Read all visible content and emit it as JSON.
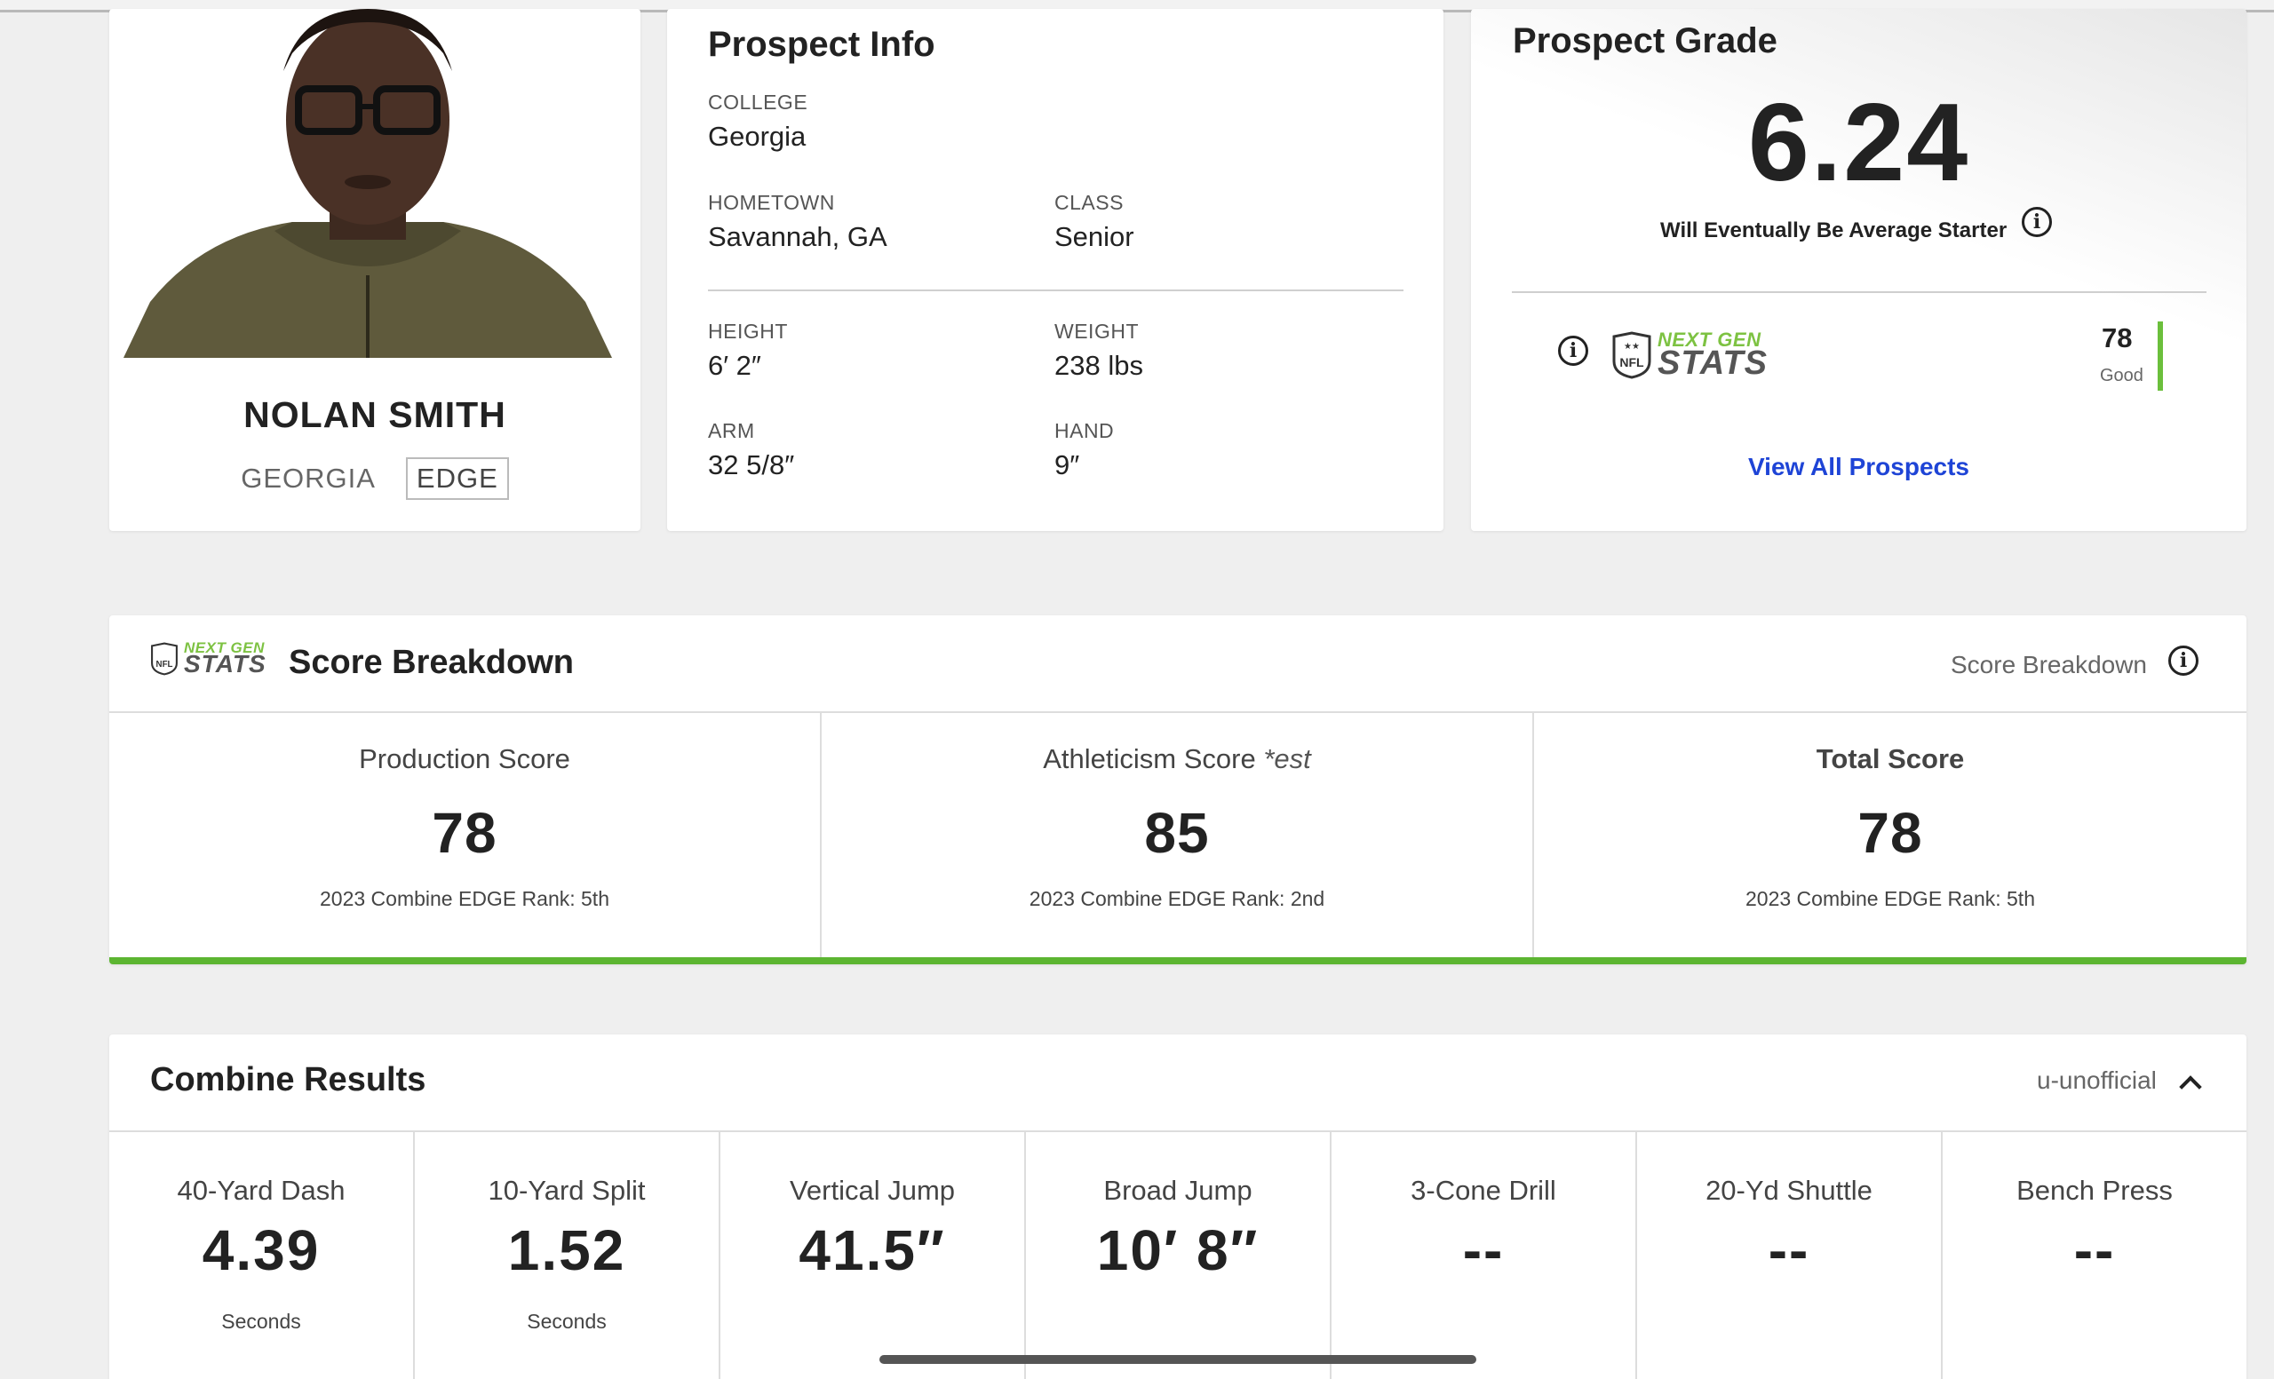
{
  "player": {
    "name": "NOLAN SMITH",
    "school": "GEORGIA",
    "position": "EDGE"
  },
  "prospect_info": {
    "title": "Prospect Info",
    "college_label": "COLLEGE",
    "college": "Georgia",
    "hometown_label": "HOMETOWN",
    "hometown": "Savannah, GA",
    "class_label": "CLASS",
    "class": "Senior",
    "height_label": "HEIGHT",
    "height": "6′ 2″",
    "weight_label": "WEIGHT",
    "weight": "238 lbs",
    "arm_label": "ARM",
    "arm": "32 5/8″",
    "hand_label": "HAND",
    "hand": "9″"
  },
  "prospect_grade": {
    "title": "Prospect Grade",
    "grade": "6.24",
    "description": "Will Eventually Be Average Starter",
    "ngs_next": "NEXT GEN",
    "ngs_stats": "STATS",
    "ngs_score": "78",
    "ngs_rating": "Good",
    "view_all": "View All Prospects"
  },
  "score_breakdown": {
    "title": "Score Breakdown",
    "right_label": "Score Breakdown",
    "ngs_next": "NEXT GEN",
    "ngs_stats": "STATS",
    "scores": [
      {
        "label": "Production Score",
        "suffix": "",
        "value": "78",
        "rank": "2023 Combine EDGE Rank: 5th"
      },
      {
        "label": "Athleticism Score",
        "suffix": "*est",
        "value": "85",
        "rank": "2023 Combine EDGE Rank: 2nd"
      },
      {
        "label": "Total Score",
        "suffix": "",
        "value": "78",
        "rank": "2023 Combine EDGE Rank: 5th"
      }
    ]
  },
  "combine": {
    "title": "Combine Results",
    "right_label": "u-unofficial",
    "drills": [
      {
        "label": "40-Yard Dash",
        "value": "4.39",
        "unit": "Seconds"
      },
      {
        "label": "10-Yard Split",
        "value": "1.52",
        "unit": "Seconds"
      },
      {
        "label": "Vertical Jump",
        "value": "41.5″",
        "unit": ""
      },
      {
        "label": "Broad Jump",
        "value": "10′ 8″",
        "unit": ""
      },
      {
        "label": "3-Cone Drill",
        "value": "--",
        "unit": ""
      },
      {
        "label": "20-Yd Shuttle",
        "value": "--",
        "unit": ""
      },
      {
        "label": "Bench Press",
        "value": "--",
        "unit": ""
      }
    ]
  },
  "colors": {
    "accent_green": "#5cb531",
    "link_blue": "#1e44d6"
  }
}
